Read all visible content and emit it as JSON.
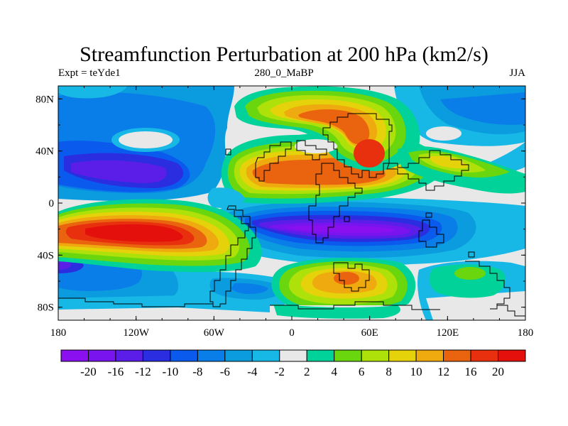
{
  "title": "Streamfunction Perturbation at 200 hPa (km2/s)",
  "subtitle_left": "Expt = teYde1",
  "subtitle_center": "280_0_MaBP",
  "subtitle_right": "JJA",
  "chart_data": {
    "type": "heatmap",
    "title": "Streamfunction Perturbation at 200 hPa (km2/s)",
    "xlabel": "",
    "ylabel": "",
    "x_ticks": [
      "180",
      "120W",
      "60W",
      "0",
      "60E",
      "120E",
      "180"
    ],
    "x_tick_values": [
      -180,
      -120,
      -60,
      0,
      60,
      120,
      180
    ],
    "y_ticks": [
      "80N",
      "40N",
      "0",
      "40S",
      "80S"
    ],
    "y_tick_values": [
      80,
      40,
      0,
      -40,
      -80
    ],
    "xlim": [
      -180,
      180
    ],
    "ylim": [
      -90,
      90
    ],
    "colorbar": {
      "labels": [
        "-20",
        "-16",
        "-12",
        "-10",
        "-8",
        "-6",
        "-4",
        "-2",
        "2",
        "4",
        "6",
        "8",
        "10",
        "12",
        "16",
        "20"
      ],
      "levels": [
        -20,
        -16,
        -12,
        -10,
        -8,
        -6,
        -4,
        -2,
        2,
        4,
        6,
        8,
        10,
        12,
        16,
        20
      ],
      "colors": [
        "#8a10f0",
        "#7a14ee",
        "#5a1ee8",
        "#2a2de0",
        "#0a5aee",
        "#0a7ee8",
        "#0a9cde",
        "#18b8e6",
        "#e8e8e8",
        "#00d29a",
        "#6ad60e",
        "#aee00a",
        "#e6d20a",
        "#eeaa0e",
        "#ea6410",
        "#e8300e",
        "#e4100c"
      ]
    },
    "features": [
      {
        "name": "positive anomaly (N Africa / Asia)",
        "lon": 40,
        "lat": 30,
        "value": 14
      },
      {
        "name": "positive anomaly (central Asia)",
        "lon": 60,
        "lat": 55,
        "value": 16
      },
      {
        "name": "positive anomaly (S Pacific)",
        "lon": -100,
        "lat": -20,
        "value": 20
      },
      {
        "name": "negative anomaly (Indian Ocean)",
        "lon": 40,
        "lat": -20,
        "value": -20
      },
      {
        "name": "negative anomaly (N Pacific)",
        "lon": -110,
        "lat": 30,
        "value": -14
      },
      {
        "name": "positive anomaly (S Africa)",
        "lon": 45,
        "lat": -60,
        "value": 12
      }
    ]
  }
}
